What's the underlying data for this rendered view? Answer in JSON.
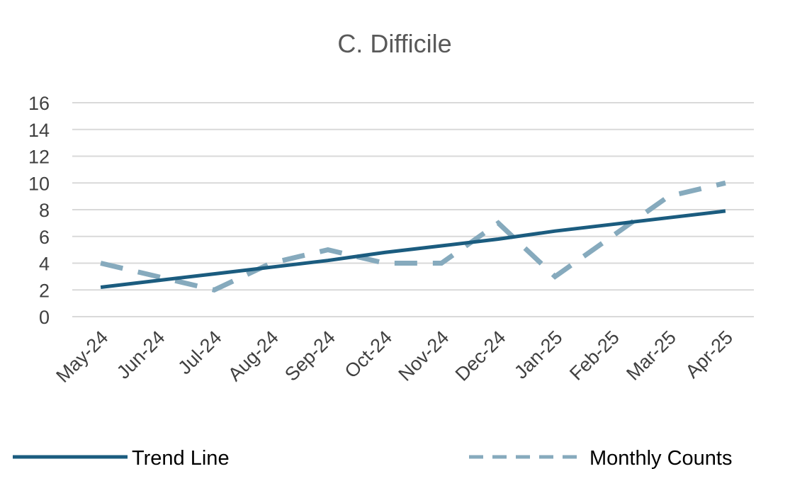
{
  "chart_data": {
    "type": "line",
    "title": "C. Difficile",
    "xlabel": "",
    "ylabel": "",
    "categories": [
      "May-24",
      "Jun-24",
      "Jul-24",
      "Aug-24",
      "Sep-24",
      "Oct-24",
      "Nov-24",
      "Dec-24",
      "Jan-25",
      "Feb-25",
      "Mar-25",
      "Apr-25"
    ],
    "ylim": [
      0,
      16
    ],
    "yticks": [
      "0",
      "2",
      "4",
      "6",
      "8",
      "10",
      "12",
      "14",
      "16"
    ],
    "grid": true,
    "legend_position": "bottom",
    "series": [
      {
        "name": "Trend Line",
        "style": "solid",
        "color": "#1b5c7f",
        "values": [
          2.2,
          2.7,
          3.2,
          3.7,
          4.2,
          4.8,
          5.3,
          5.8,
          6.4,
          6.9,
          7.4,
          7.9
        ]
      },
      {
        "name": "Monthly Counts",
        "style": "dashed",
        "color": "#86aabd",
        "values": [
          4,
          3,
          2,
          4,
          5,
          4,
          4,
          7,
          3,
          6,
          9,
          10
        ]
      }
    ]
  }
}
